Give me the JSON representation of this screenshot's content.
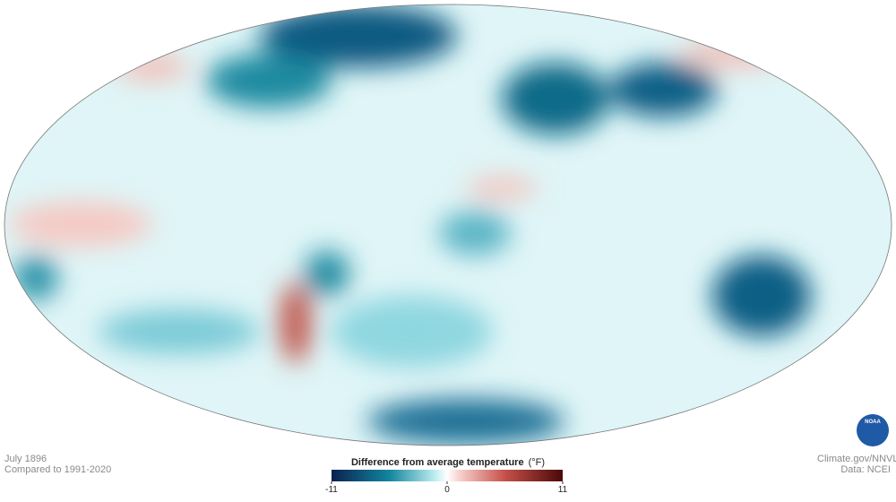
{
  "caption": {
    "date": "July 1896",
    "baseline": "Compared to 1991-2020"
  },
  "legend": {
    "title": "Difference from average temperature",
    "unit": "(°F)",
    "range": [
      -11,
      11
    ],
    "ticks": [
      -11,
      0,
      11
    ]
  },
  "credits": {
    "source": "Climate.gov/NNVL",
    "data": "Data: NCEI"
  },
  "logo": "NOAA"
}
